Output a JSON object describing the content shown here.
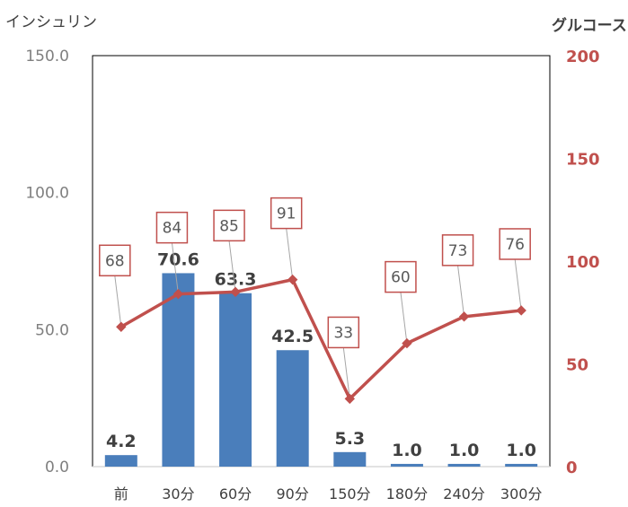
{
  "chart_data": {
    "type": "bar+line",
    "categories": [
      "前",
      "30分",
      "60分",
      "90分",
      "150分",
      "180分",
      "240分",
      "300分"
    ],
    "series": [
      {
        "type": "bar",
        "axis": "left",
        "values": [
          4.2,
          70.6,
          63.3,
          42.5,
          5.3,
          1.0,
          1.0,
          1.0
        ],
        "data_labels": [
          "4.2",
          "70.6",
          "63.3",
          "42.5",
          "5.3",
          "1.0",
          "1.0",
          "1.0"
        ]
      },
      {
        "type": "line",
        "axis": "right",
        "values": [
          68,
          84,
          85,
          91,
          33,
          60,
          73,
          76
        ],
        "data_labels": [
          "68",
          "84",
          "85",
          "91",
          "33",
          "60",
          "73",
          "76"
        ]
      }
    ],
    "left_axis": {
      "title": "インシュリン",
      "range": [
        0,
        150
      ],
      "ticks": [
        0,
        50,
        100,
        150
      ],
      "tick_labels": [
        "0.0",
        "50.0",
        "100.0",
        "150.0"
      ]
    },
    "right_axis": {
      "title": "グルコース",
      "range": [
        0,
        200
      ],
      "ticks": [
        0,
        50,
        100,
        150,
        200
      ],
      "tick_labels": [
        "0",
        "50",
        "100",
        "150",
        "200"
      ]
    },
    "grid": false,
    "legend": "none",
    "colors": {
      "bar": "#4a7ebb",
      "line": "#c0504d",
      "left_tick_text": "#7f7f7f",
      "right_tick_text": "#c0504d",
      "bar_label_text": "#404040",
      "line_label_text": "#595959",
      "callout_border": "#c0504d",
      "leader_line": "#a6a6a6",
      "plot_border": "#000000"
    }
  }
}
